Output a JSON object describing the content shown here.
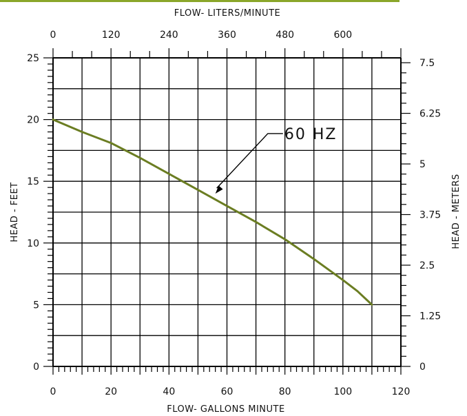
{
  "chart_data": {
    "type": "line",
    "title": "",
    "xlabel": "FLOW- GALLONS MINUTE",
    "ylabel": "HEAD - FEET",
    "x2label": "FLOW- LITERS/MINUTE",
    "y2label": "HEAD - METERS",
    "xlim": [
      0,
      120
    ],
    "ylim": [
      0,
      25
    ],
    "x2lim": [
      0,
      720
    ],
    "y2lim": [
      0,
      7.62
    ],
    "x_ticks": [
      0,
      20,
      40,
      60,
      80,
      100,
      120
    ],
    "y_ticks": [
      0,
      5,
      10,
      15,
      20,
      25
    ],
    "x2_ticks": [
      0,
      120,
      240,
      360,
      480,
      600
    ],
    "y2_ticks": [
      0,
      1.25,
      2.5,
      3.75,
      5,
      6.25,
      7.5
    ],
    "x_tick_labels": [
      "0",
      "20",
      "40",
      "60",
      "80",
      "100",
      "120"
    ],
    "y_tick_labels": [
      "0",
      "5",
      "10",
      "15",
      "20",
      "25"
    ],
    "x2_tick_labels": [
      "0",
      "120",
      "240",
      "360",
      "480",
      "600"
    ],
    "y2_tick_labels": [
      "0",
      "1.25",
      "2.5",
      "3.75",
      "5",
      "6.25",
      "7.5"
    ],
    "grid": true,
    "series": [
      {
        "name": "60 HZ",
        "color": "#6b7d22",
        "x": [
          0,
          10,
          20,
          30,
          40,
          50,
          60,
          70,
          80,
          90,
          100,
          105,
          110
        ],
        "y": [
          20,
          19.0,
          18.1,
          16.9,
          15.6,
          14.3,
          13.0,
          11.7,
          10.3,
          8.7,
          7.0,
          6.1,
          5.0
        ]
      }
    ],
    "annotations": [
      {
        "text": "60 HZ",
        "target_x": 56,
        "target_y": 14.0,
        "text_x": 76,
        "text_y": 19.2
      }
    ]
  }
}
